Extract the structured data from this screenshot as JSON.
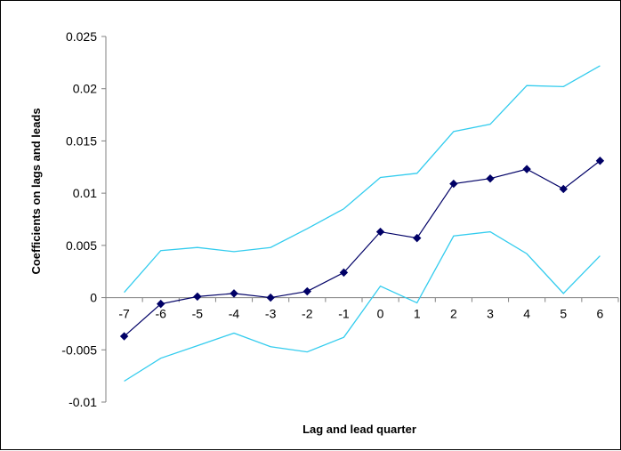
{
  "chart_data": {
    "type": "line",
    "xlabel": "Lag and lead quarter",
    "ylabel": "Coefficients on lags and leads",
    "categories": [
      "-7",
      "-6",
      "-5",
      "-4",
      "-3",
      "-2",
      "-1",
      "0",
      "1",
      "2",
      "3",
      "4",
      "5",
      "6"
    ],
    "ylim": [
      -0.01,
      0.025
    ],
    "yticks": [
      "0.025",
      "0.02",
      "0.015",
      "0.01",
      "0.005",
      "0",
      "-0.005",
      "-0.01"
    ],
    "grid": false,
    "legend": "none",
    "series": [
      {
        "values": [
          -0.0037,
          -0.0006,
          0.0001,
          0.0004,
          0.0,
          0.0006,
          0.0024,
          0.0063,
          0.0057,
          0.0109,
          0.0114,
          0.0123,
          0.0104,
          0.0131
        ],
        "color": "#000066",
        "marker": "diamond"
      },
      {
        "values": [
          0.0005,
          0.0045,
          0.0048,
          0.0044,
          0.0048,
          0.0066,
          0.0085,
          0.0115,
          0.0119,
          0.0159,
          0.0166,
          0.0203,
          0.0202,
          0.0222
        ],
        "color": "#33CCEE",
        "marker": "none"
      },
      {
        "values": [
          -0.008,
          -0.0058,
          -0.0046,
          -0.0034,
          -0.0047,
          -0.0052,
          -0.0038,
          0.0011,
          -0.0005,
          0.0059,
          0.0063,
          0.0042,
          0.0004,
          0.004
        ],
        "color": "#33CCEE",
        "marker": "none"
      }
    ]
  }
}
